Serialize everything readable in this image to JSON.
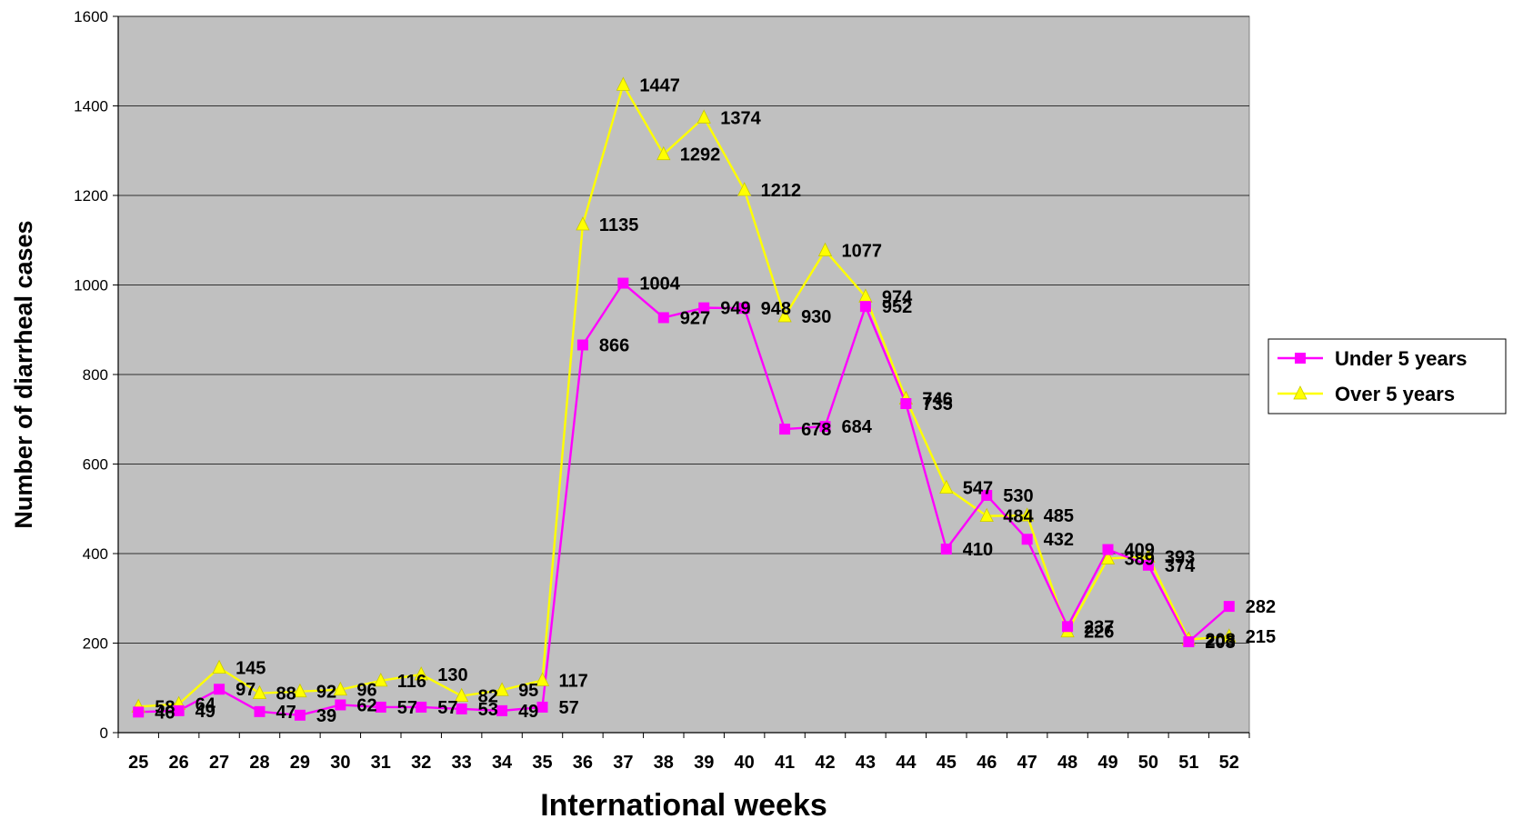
{
  "chart_data": {
    "type": "line",
    "title": "",
    "xlabel": "International weeks",
    "ylabel": "Number of diarrheal cases",
    "categories": [
      "25",
      "26",
      "27",
      "28",
      "29",
      "30",
      "31",
      "32",
      "33",
      "34",
      "35",
      "36",
      "37",
      "38",
      "39",
      "40",
      "41",
      "42",
      "43",
      "44",
      "45",
      "46",
      "47",
      "48",
      "49",
      "50",
      "51",
      "52"
    ],
    "ylim": [
      0,
      1600
    ],
    "yticks": [
      0,
      200,
      400,
      600,
      800,
      1000,
      1200,
      1400,
      1600
    ],
    "grid": "horizontal",
    "legend_position": "right",
    "series": [
      {
        "name": "Under 5 years",
        "marker": "square",
        "color": "#ff00ff",
        "values": [
          46,
          49,
          97,
          47,
          39,
          62,
          57,
          57,
          53,
          49,
          57,
          866,
          1004,
          927,
          949,
          948,
          678,
          684,
          952,
          735,
          410,
          530,
          432,
          237,
          409,
          374,
          203,
          282
        ]
      },
      {
        "name": "Over 5 years",
        "marker": "triangle",
        "color": "#ffff00",
        "values": [
          58,
          64,
          145,
          88,
          92,
          96,
          116,
          130,
          82,
          95,
          117,
          1135,
          1447,
          1292,
          1374,
          1212,
          930,
          1077,
          974,
          746,
          547,
          484,
          485,
          226,
          389,
          393,
          208,
          215
        ]
      }
    ],
    "plot_background": "#c0c0c0"
  }
}
